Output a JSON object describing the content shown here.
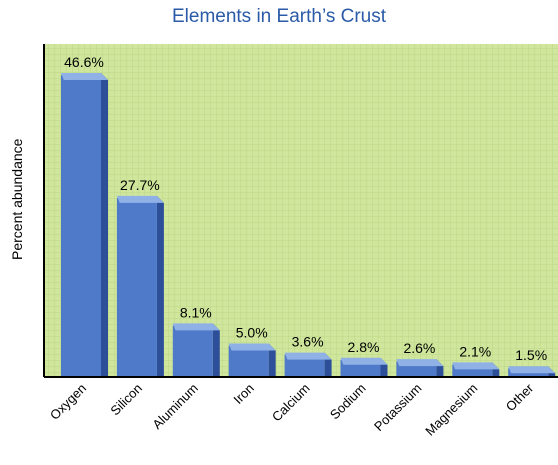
{
  "chart_data": {
    "type": "bar",
    "title": "Elements in Earth’s Crust",
    "xlabel": "",
    "ylabel": "Percent abundance",
    "categories": [
      "Oxygen",
      "Silicon",
      "Aluminum",
      "Iron",
      "Calcium",
      "Sodium",
      "Potassium",
      "Magnesium",
      "Other"
    ],
    "values": [
      46.6,
      27.7,
      8.1,
      5.0,
      3.6,
      2.8,
      2.6,
      2.1,
      1.5
    ],
    "data_labels": [
      "46.6%",
      "27.7%",
      "8.1%",
      "5.0%",
      "3.6%",
      "2.8%",
      "2.6%",
      "2.1%",
      "1.5%"
    ],
    "ylim": [
      0,
      46.6
    ],
    "grid": true,
    "colors": {
      "bar_front": "#4f79c9",
      "bar_top": "#8fb1e6",
      "bar_side": "#2d4f99",
      "background": "#cfe69c",
      "grid": "#b8d27e",
      "title": "#2a5aa8"
    }
  }
}
